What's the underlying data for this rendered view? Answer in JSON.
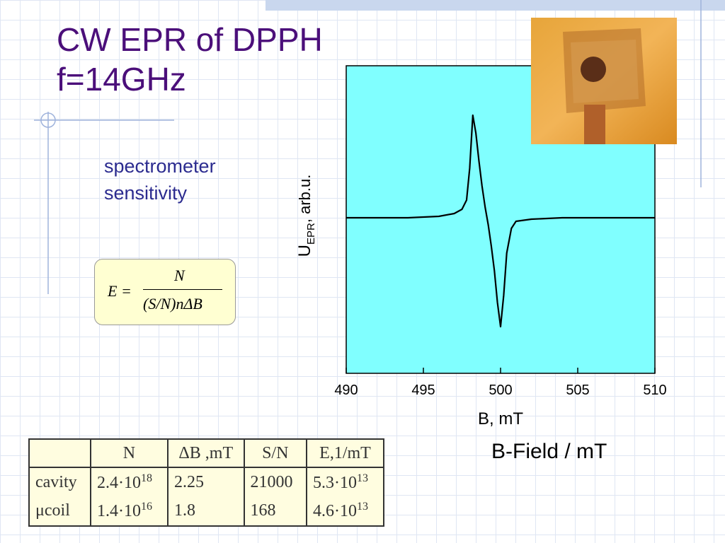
{
  "slide": {
    "title_lines": [
      "CW EPR of DPPH",
      "f=14GHz"
    ],
    "note_lines": [
      "spectrometer",
      "sensitivity"
    ],
    "formula": {
      "lhs": "E =",
      "num": "N",
      "den_paren": "(S/N)",
      "den_rest": "nΔB"
    },
    "annotation": "B-Field / mT",
    "table": {
      "header": [
        "N",
        "ΔB ,mT",
        "S/N",
        "E,1/mT"
      ],
      "rows": [
        {
          "label": "cavity",
          "cells": [
            {
              "base": "2.4·10",
              "exp": "18"
            },
            {
              "base": "2.25"
            },
            {
              "base": "21000"
            },
            {
              "base": "5.3·10",
              "exp": "13"
            }
          ]
        },
        {
          "label": "μcoil",
          "cells": [
            {
              "base": "1.4·10",
              "exp": "16"
            },
            {
              "base": "1.8"
            },
            {
              "base": "168"
            },
            {
              "base": "4.6·10",
              "exp": "13"
            }
          ]
        }
      ]
    }
  },
  "chart_data": {
    "type": "line",
    "x_label": "B, mT",
    "y_label": {
      "main": "U",
      "sub": "EPR",
      "rest": ", arb.u."
    },
    "x": [
      490,
      494,
      496,
      497,
      497.5,
      497.8,
      498.0,
      498.2,
      498.4,
      498.6,
      498.8,
      499.0,
      499.2,
      499.4,
      499.6,
      499.8,
      500.0,
      500.2,
      500.4,
      500.7,
      501,
      502,
      504,
      506,
      510
    ],
    "series": [
      {
        "color": "#000000",
        "values": [
          0,
          0,
          0.02,
          0.06,
          0.12,
          0.25,
          0.7,
          1.45,
          1.2,
          0.8,
          0.45,
          0.15,
          -0.1,
          -0.4,
          -0.75,
          -1.2,
          -1.54,
          -1.1,
          -0.5,
          -0.15,
          -0.05,
          -0.02,
          0,
          0,
          0
        ]
      }
    ],
    "xlim": [
      490,
      510
    ],
    "ylim": [
      -2.2,
      2.15
    ],
    "xticks": [
      490,
      495,
      500,
      505,
      510
    ],
    "background": "#80ffff"
  }
}
